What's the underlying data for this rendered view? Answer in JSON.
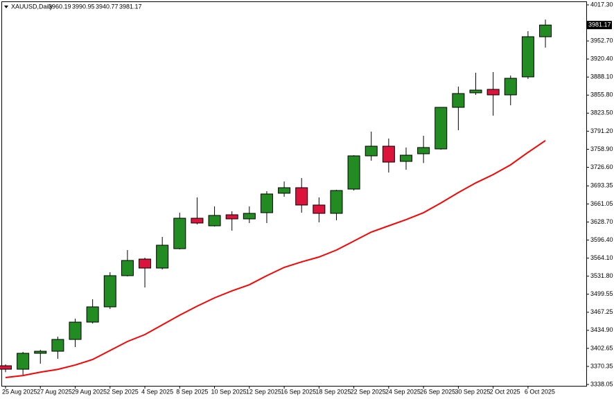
{
  "chart_data": {
    "type": "candlestick",
    "title": "XAUUSD,Daily",
    "categories": [
      "25 Aug 2025",
      null,
      "27 Aug 2025",
      null,
      "29 Aug 2025",
      null,
      "2 Sep 2025",
      null,
      "4 Sep 2025",
      null,
      "8 Sep 2025",
      null,
      "10 Sep 2025",
      null,
      "12 Sep 2025",
      null,
      "16 Sep 2025",
      null,
      "18 Sep 2025",
      null,
      "22 Sep 2025",
      null,
      "24 Sep 2025",
      null,
      "26 Sep 2025",
      null,
      "30 Sep 2025",
      null,
      "2 Oct 2025",
      null,
      "6 Oct 2025",
      null
    ],
    "open": [
      3371.5,
      3365.3,
      3393.8,
      3397.5,
      3418.6,
      3449.6,
      3476.9,
      3532.7,
      3562.4,
      3546.3,
      3581.0,
      3635.5,
      3621.9,
      3641.7,
      3634.3,
      3645.4,
      3680.2,
      3690.1,
      3659.1,
      3644.2,
      3687.6,
      3747.1,
      3764.4,
      3737.2,
      3750.8,
      3759.5,
      3833.9,
      3859.9,
      3866.1,
      3856.2,
      3888.4,
      3960.19
    ],
    "high": [
      3374.0,
      3396.3,
      3400.0,
      3423.6,
      3455.8,
      3490.5,
      3538.9,
      3578.5,
      3564.9,
      3602.1,
      3645.4,
      3672.7,
      3656.6,
      3647.9,
      3656.6,
      3683.9,
      3701.2,
      3707.4,
      3672.7,
      3686.4,
      3748.3,
      3790.5,
      3778.1,
      3762.0,
      3783.0,
      3834.5,
      3871.0,
      3895.8,
      3897.1,
      3890.9,
      3970.2,
      3990.95
    ],
    "low": [
      3360.0,
      3355.4,
      3375.2,
      3384.0,
      3405.0,
      3447.1,
      3473.2,
      3531.4,
      3511.6,
      3543.8,
      3579.8,
      3624.4,
      3620.7,
      3613.2,
      3626.9,
      3626.9,
      3674.0,
      3645.4,
      3628.1,
      3631.8,
      3685.1,
      3738.4,
      3717.3,
      3722.3,
      3734.2,
      3758.2,
      3793.0,
      3856.2,
      3819.0,
      3837.6,
      3884.7,
      3940.77
    ],
    "close": [
      3365.3,
      3393.8,
      3397.5,
      3418.6,
      3449.6,
      3476.9,
      3532.7,
      3559.9,
      3546.3,
      3587.2,
      3635.5,
      3626.9,
      3640.5,
      3634.3,
      3644.2,
      3678.9,
      3690.1,
      3659.1,
      3644.2,
      3685.1,
      3747.1,
      3764.4,
      3735.9,
      3748.3,
      3762.0,
      3833.9,
      3858.6,
      3864.8,
      3856.2,
      3885.9,
      3960.3,
      3981.17
    ],
    "up_color": "#228b22",
    "down_color": "#dc143c",
    "moving_average": {
      "color": "#ff0000",
      "values": [
        3350.5,
        3354.0,
        3360.0,
        3365.0,
        3372.8,
        3382.7,
        3398.8,
        3414.9,
        3427.3,
        3444.7,
        3462.0,
        3478.1,
        3493.0,
        3505.4,
        3516.5,
        3532.7,
        3547.5,
        3557.4,
        3566.1,
        3578.5,
        3594.6,
        3610.7,
        3621.9,
        3633.0,
        3645.4,
        3662.8,
        3681.4,
        3698.7,
        3713.6,
        3731.0,
        3753.3,
        3774.4
      ]
    },
    "ylim": [
      3338.05,
      4017.3
    ],
    "yticks": [
      {
        "value": 4017.3,
        "label": "4017.30"
      },
      {
        "value": 3952.7,
        "label": "3952.70"
      },
      {
        "value": 3920.4,
        "label": "3920.40"
      },
      {
        "value": 3888.1,
        "label": "3888.10"
      },
      {
        "value": 3855.8,
        "label": "3855.80"
      },
      {
        "value": 3823.5,
        "label": "3823.50"
      },
      {
        "value": 3791.2,
        "label": "3791.20"
      },
      {
        "value": 3758.9,
        "label": "3758.90"
      },
      {
        "value": 3726.6,
        "label": "3726.60"
      },
      {
        "value": 3693.35,
        "label": "3693.35"
      },
      {
        "value": 3661.05,
        "label": "3661.05"
      },
      {
        "value": 3628.7,
        "label": "3628.70"
      },
      {
        "value": 3596.4,
        "label": "3596.40"
      },
      {
        "value": 3564.1,
        "label": "3564.10"
      },
      {
        "value": 3531.8,
        "label": "3531.80"
      },
      {
        "value": 3499.55,
        "label": "3499.55"
      },
      {
        "value": 3467.25,
        "label": "3467.25"
      },
      {
        "value": 3434.9,
        "label": "3434.90"
      },
      {
        "value": 3402.65,
        "label": "3402.65"
      },
      {
        "value": 3370.35,
        "label": "3370.35"
      },
      {
        "value": 3338.05,
        "label": "3338.05"
      }
    ],
    "grid": false
  }
}
